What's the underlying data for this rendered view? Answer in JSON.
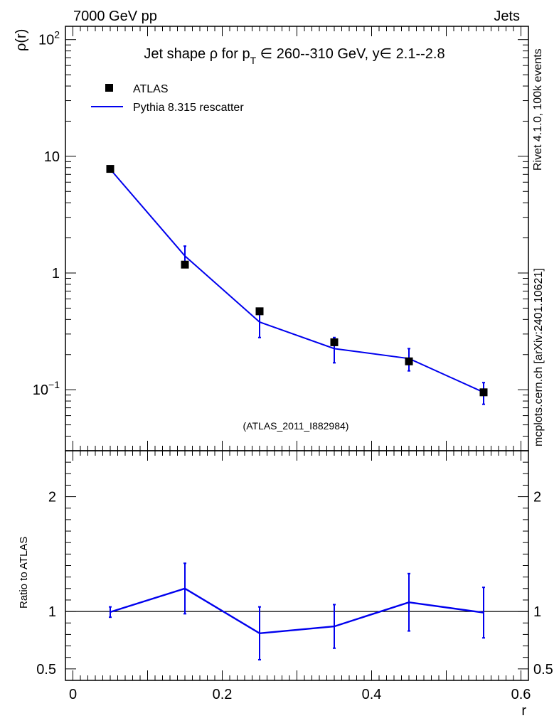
{
  "header": {
    "left": "7000 GeV pp",
    "right": "Jets"
  },
  "side_labels": {
    "rivet": "Rivet 4.1.0,  100k events",
    "mcplots": "mcplots.cern.ch [arXiv:2401.10621]"
  },
  "colors": {
    "mc": "#0000ee",
    "data": "#000000",
    "watermark": "#999999",
    "sidetext": "#888888"
  },
  "chart_data": [
    {
      "type": "line",
      "title": "Jet shape ρ for p_T ∈ 260--310 GeV, y∈ 2.1--2.8",
      "title_parts": {
        "prefix": "Jet shape ρ for p",
        "subscript": "T",
        "suffix": " ∈ 260--310 GeV, y∈ 2.1--2.8"
      },
      "ylabel": "ρ(r)",
      "xlabel": "r",
      "yscale": "log",
      "ylim": [
        0.03,
        130
      ],
      "xlim": [
        -0.01,
        0.61
      ],
      "yticks": [
        {
          "value": 100,
          "label": "10",
          "exp": "2"
        },
        {
          "value": 10,
          "label": "10",
          "exp": ""
        },
        {
          "value": 1,
          "label": "1",
          "exp": ""
        },
        {
          "value": 0.1,
          "label": "10",
          "exp": "−1"
        }
      ],
      "watermark": "(ATLAS_2011_I882984)",
      "legend": {
        "position": "top-left",
        "data_label": "ATLAS",
        "mc_label": "Pythia 8.315 rescatter"
      },
      "series": [
        {
          "name": "ATLAS",
          "x": [
            0.05,
            0.15,
            0.25,
            0.35,
            0.45,
            0.55
          ],
          "y": [
            7.8,
            1.18,
            0.47,
            0.255,
            0.175,
            0.095
          ],
          "err": [
            0.25,
            0.06,
            0.02,
            0.015,
            0.01,
            0.006
          ]
        },
        {
          "name": "Pythia 8.315 rescatter",
          "x": [
            0.05,
            0.15,
            0.25,
            0.35,
            0.45,
            0.55
          ],
          "y": [
            7.75,
            1.4,
            0.38,
            0.225,
            0.185,
            0.095
          ],
          "err_lo": [
            0.3,
            0.28,
            0.1,
            0.055,
            0.04,
            0.02
          ],
          "err_hi": [
            0.3,
            0.3,
            0.1,
            0.055,
            0.04,
            0.02
          ]
        }
      ]
    },
    {
      "type": "line",
      "title": "",
      "ylabel": "Ratio to ATLAS",
      "xlabel": "r",
      "ylim": [
        0.4,
        2.4
      ],
      "xlim": [
        -0.01,
        0.61
      ],
      "yticks": [
        {
          "value": 2,
          "label": "2"
        },
        {
          "value": 1,
          "label": "1"
        },
        {
          "value": 0.5,
          "label": "0.5"
        }
      ],
      "xticks": [
        {
          "value": 0,
          "label": "0"
        },
        {
          "value": 0.2,
          "label": "0.2"
        },
        {
          "value": 0.4,
          "label": "0.4"
        },
        {
          "value": 0.6,
          "label": "0.6"
        }
      ],
      "reference": 1,
      "series": [
        {
          "name": "Pythia 8.315 rescatter / ATLAS",
          "x": [
            0.05,
            0.15,
            0.25,
            0.35,
            0.45,
            0.55
          ],
          "y": [
            0.995,
            1.2,
            0.81,
            0.87,
            1.08,
            0.99
          ],
          "err_lo": [
            0.045,
            0.22,
            0.23,
            0.19,
            0.25,
            0.22
          ],
          "err_hi": [
            0.045,
            0.22,
            0.23,
            0.19,
            0.25,
            0.22
          ]
        }
      ]
    }
  ]
}
